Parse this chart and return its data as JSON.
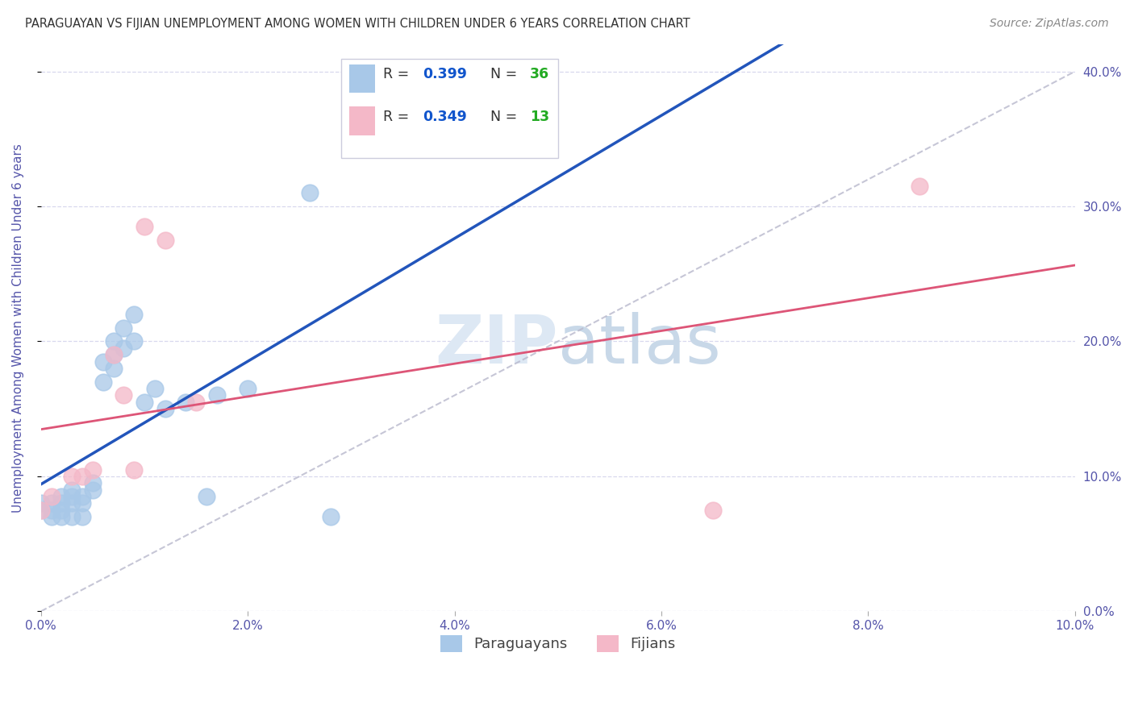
{
  "title": "PARAGUAYAN VS FIJIAN UNEMPLOYMENT AMONG WOMEN WITH CHILDREN UNDER 6 YEARS CORRELATION CHART",
  "source": "Source: ZipAtlas.com",
  "ylabel": "Unemployment Among Women with Children Under 6 years",
  "xlim": [
    0.0,
    0.1
  ],
  "ylim": [
    0.0,
    0.42
  ],
  "paraguayan_x": [
    0.0,
    0.0,
    0.001,
    0.001,
    0.001,
    0.002,
    0.002,
    0.002,
    0.002,
    0.003,
    0.003,
    0.003,
    0.003,
    0.004,
    0.004,
    0.004,
    0.005,
    0.005,
    0.006,
    0.006,
    0.007,
    0.007,
    0.007,
    0.008,
    0.008,
    0.009,
    0.009,
    0.01,
    0.011,
    0.012,
    0.014,
    0.016,
    0.017,
    0.02,
    0.026,
    0.028
  ],
  "paraguayan_y": [
    0.075,
    0.08,
    0.07,
    0.075,
    0.08,
    0.07,
    0.075,
    0.08,
    0.085,
    0.07,
    0.08,
    0.09,
    0.085,
    0.07,
    0.08,
    0.085,
    0.09,
    0.095,
    0.17,
    0.185,
    0.18,
    0.19,
    0.2,
    0.195,
    0.21,
    0.2,
    0.22,
    0.155,
    0.165,
    0.15,
    0.155,
    0.085,
    0.16,
    0.165,
    0.31,
    0.07
  ],
  "fijian_x": [
    0.0,
    0.001,
    0.003,
    0.004,
    0.005,
    0.007,
    0.008,
    0.009,
    0.01,
    0.012,
    0.015,
    0.065,
    0.085
  ],
  "fijian_y": [
    0.075,
    0.085,
    0.1,
    0.1,
    0.105,
    0.19,
    0.16,
    0.105,
    0.285,
    0.275,
    0.155,
    0.075,
    0.315
  ],
  "paraguayan_R": 0.399,
  "paraguayan_N": 36,
  "fijian_R": 0.349,
  "fijian_N": 13,
  "blue_scatter_color": "#a8c8e8",
  "pink_scatter_color": "#f4b8c8",
  "blue_line_color": "#2255bb",
  "pink_line_color": "#dd5577",
  "diagonal_color": "#b8b8cc",
  "legend_R_color": "#1155cc",
  "legend_N_color": "#22aa22",
  "watermark_color": "#dde8f4",
  "title_color": "#333333",
  "axis_tick_color": "#5555aa",
  "ylabel_color": "#5555aa",
  "grid_color": "#d8d8ee"
}
